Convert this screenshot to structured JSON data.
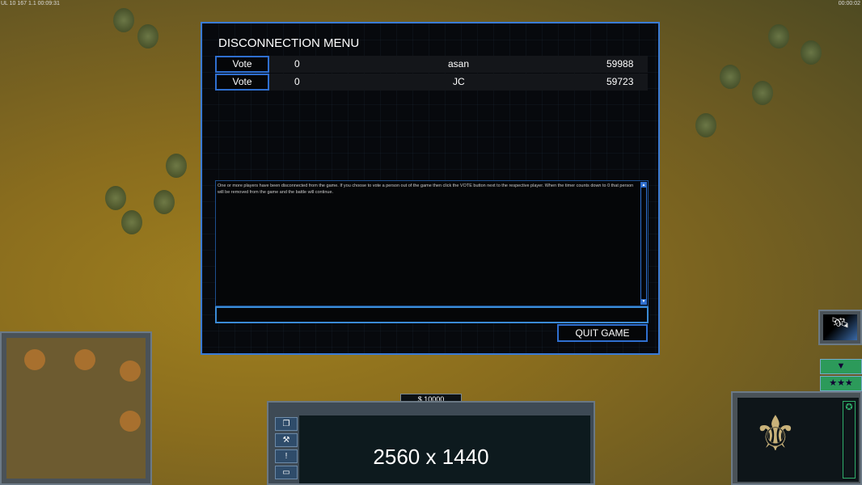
{
  "hud": {
    "top_left": "UL 10 167 1.1 00:09:31",
    "top_right": "00:00:02"
  },
  "dialog": {
    "title": "DISCONNECTION MENU",
    "players": [
      {
        "vote_label": "Vote",
        "votes": "0",
        "name": "asan",
        "timer": "59988"
      },
      {
        "vote_label": "Vote",
        "votes": "0",
        "name": "JC",
        "timer": "59723"
      }
    ],
    "message": "One or more players have been disconnected from the game. If you choose to vote a person out of the game then click the VOTE button next to the respective player. When the timer counts down to 0 that person will be removed from the game and the battle will continue.",
    "chat_value": "",
    "quit_label": "QUIT GAME"
  },
  "bottom_bar": {
    "money": "$ 10000",
    "overlay_text": "2560 x 1440"
  },
  "icons": [
    "windows-icon",
    "wrench-icon",
    "alert-icon",
    "sign-icon",
    "satellite-icon",
    "chevron-down-icon",
    "stars-icon",
    "faction-emblem-icon",
    "star-badge-icon"
  ]
}
